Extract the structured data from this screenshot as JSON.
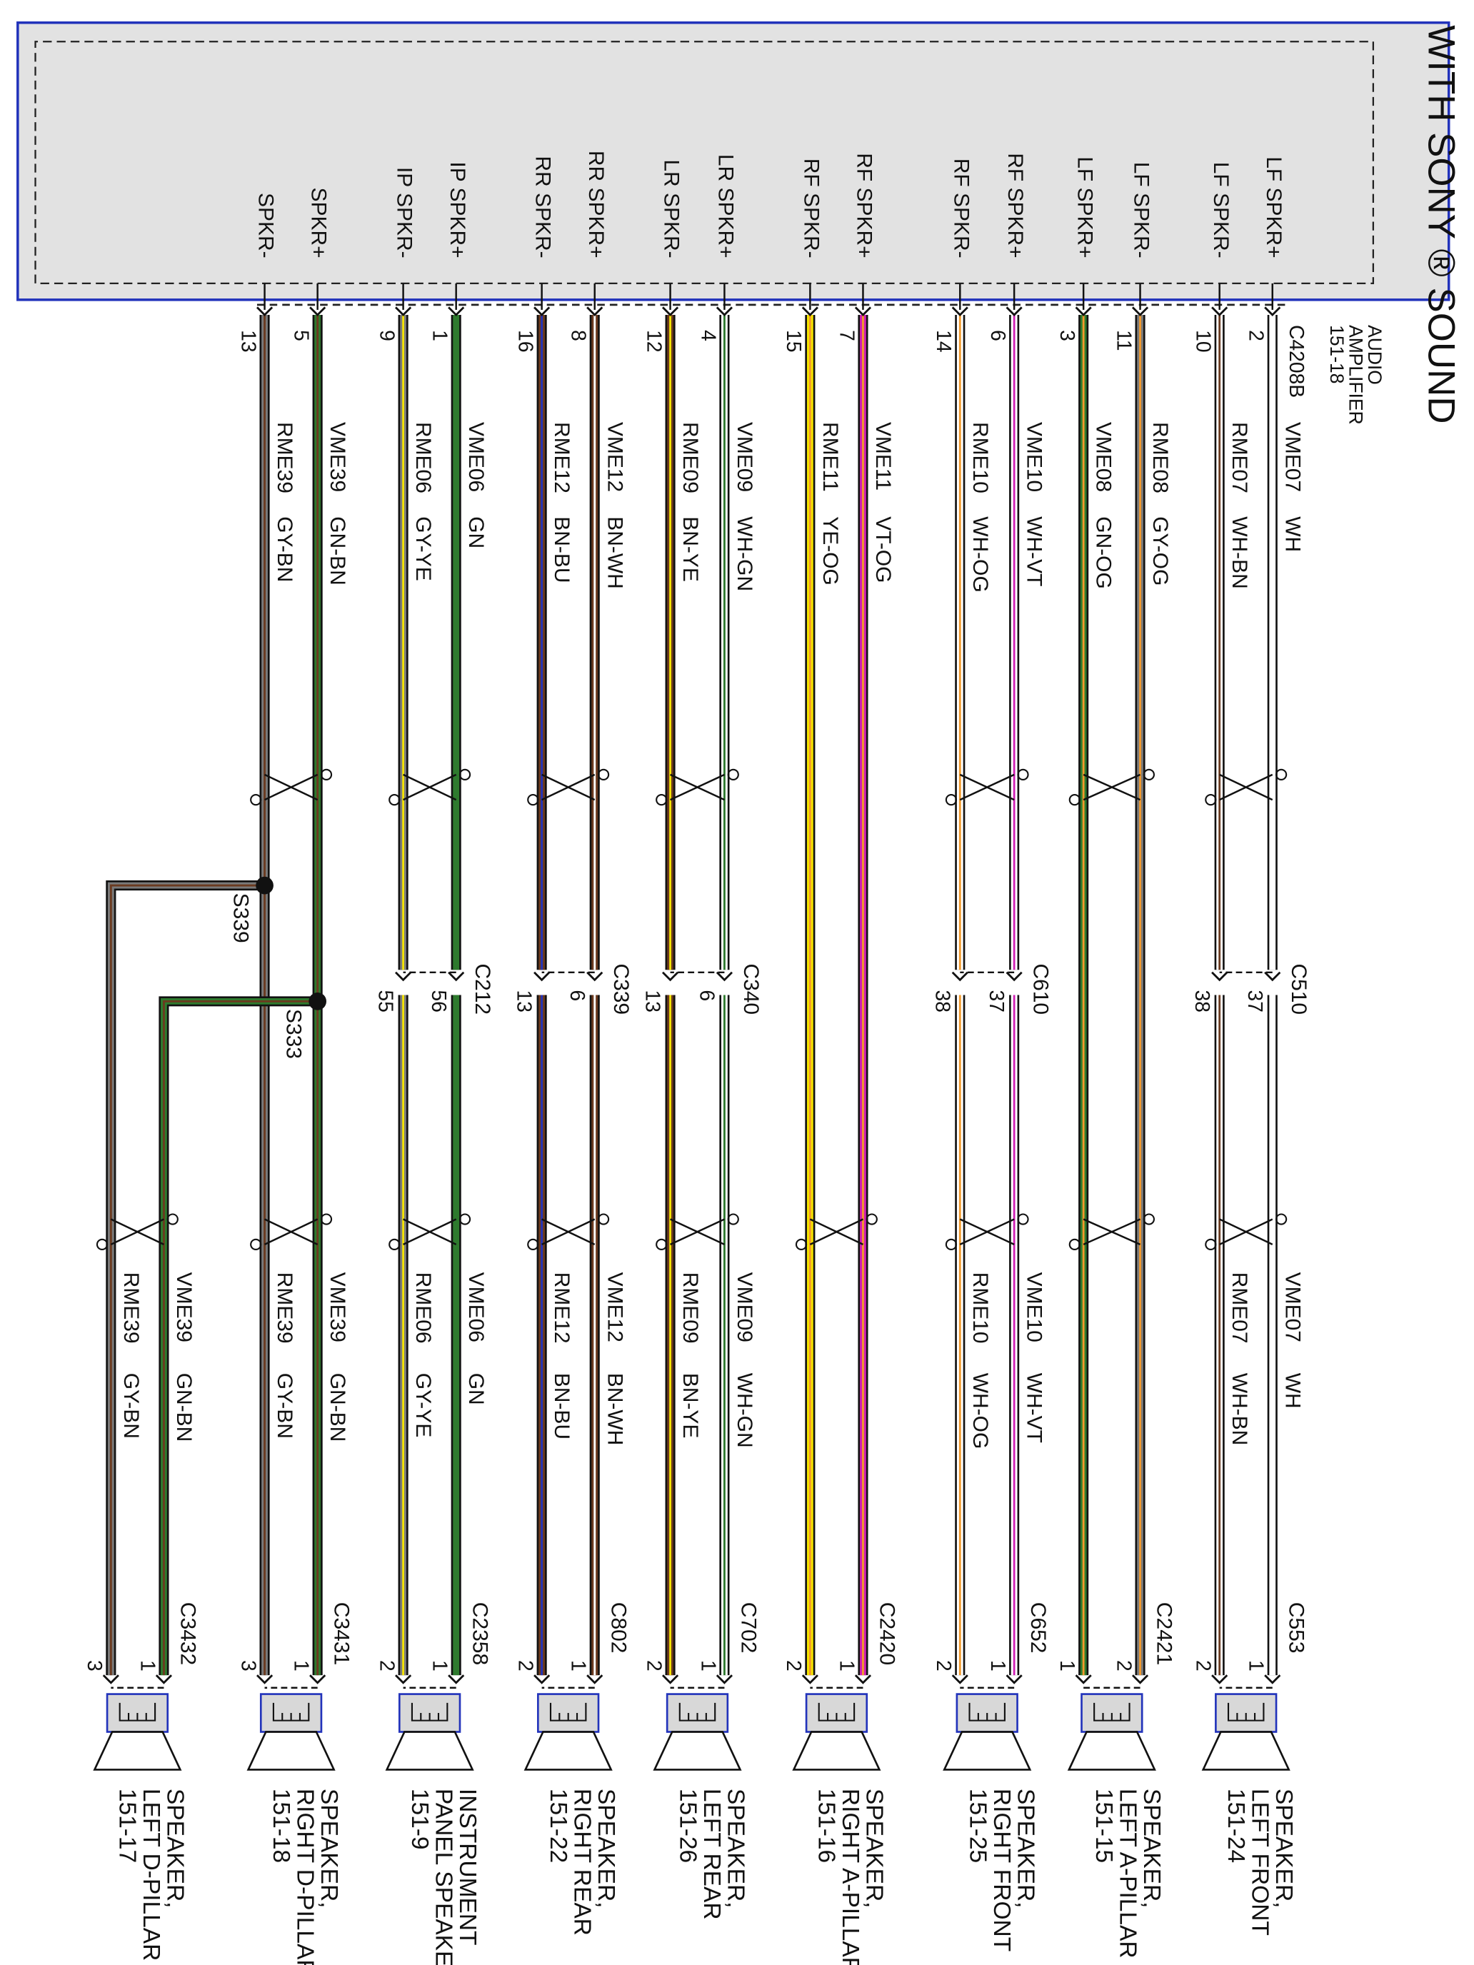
{
  "title": "WITH SONY ® SOUND",
  "amplifier": {
    "name": [
      "AUDIO",
      "AMPLIFIER"
    ],
    "ref": "151-18",
    "connector": "C4208B"
  },
  "circuits": [
    {
      "speaker": [
        "SPEAKER,",
        "LEFT FRONT"
      ],
      "speaker_ref": "151-24",
      "speaker_connector": "C553",
      "inline_connector": "C510",
      "wire_labels": [
        "near_amp",
        "near_speaker"
      ],
      "wires": [
        {
          "terminal": "LF SPKR+",
          "amp_pin": 2,
          "circuit": "VME07",
          "color": "WH",
          "inline_pin": 37,
          "speaker_pin": 1
        },
        {
          "terminal": "LF SPKR-",
          "amp_pin": 10,
          "circuit": "RME07",
          "color": "WH-BN",
          "inline_pin": 38,
          "speaker_pin": 2
        }
      ]
    },
    {
      "speaker": [
        "SPEAKER,",
        "LEFT A-PILLAR"
      ],
      "speaker_ref": "151-15",
      "speaker_connector": "C2421",
      "wire_labels": [
        "near_amp"
      ],
      "wires": [
        {
          "terminal": "LF SPKR-",
          "amp_pin": 11,
          "circuit": "RME08",
          "color": "GY-OG",
          "speaker_pin": 2
        },
        {
          "terminal": "LF SPKR+",
          "amp_pin": 3,
          "circuit": "VME08",
          "color": "GN-OG",
          "speaker_pin": 1
        }
      ]
    },
    {
      "speaker": [
        "SPEAKER,",
        "RIGHT FRONT"
      ],
      "speaker_ref": "151-25",
      "speaker_connector": "C652",
      "inline_connector": "C610",
      "wire_labels": [
        "near_amp",
        "near_speaker"
      ],
      "wires": [
        {
          "terminal": "RF SPKR+",
          "amp_pin": 6,
          "circuit": "VME10",
          "color": "WH-VT",
          "inline_pin": 37,
          "speaker_pin": 1
        },
        {
          "terminal": "RF SPKR-",
          "amp_pin": 14,
          "circuit": "RME10",
          "color": "WH-OG",
          "inline_pin": 38,
          "speaker_pin": 2
        }
      ]
    },
    {
      "speaker": [
        "SPEAKER,",
        "RIGHT A-PILLAR"
      ],
      "speaker_ref": "151-16",
      "speaker_connector": "C2420",
      "wire_labels": [
        "near_amp"
      ],
      "wires": [
        {
          "terminal": "RF SPKR+",
          "amp_pin": 7,
          "circuit": "VME11",
          "color": "VT-OG",
          "speaker_pin": 1
        },
        {
          "terminal": "RF SPKR-",
          "amp_pin": 15,
          "circuit": "RME11",
          "color": "YE-OG",
          "speaker_pin": 2
        }
      ]
    },
    {
      "speaker": [
        "SPEAKER,",
        "LEFT REAR"
      ],
      "speaker_ref": "151-26",
      "speaker_connector": "C702",
      "inline_connector": "C340",
      "wire_labels": [
        "near_amp",
        "near_speaker"
      ],
      "wires": [
        {
          "terminal": "LR SPKR+",
          "amp_pin": 4,
          "circuit": "VME09",
          "color": "WH-GN",
          "inline_pin": 6,
          "speaker_pin": 1
        },
        {
          "terminal": "LR SPKR-",
          "amp_pin": 12,
          "circuit": "RME09",
          "color": "BN-YE",
          "inline_pin": 13,
          "speaker_pin": 2
        }
      ]
    },
    {
      "speaker": [
        "SPEAKER,",
        "RIGHT REAR"
      ],
      "speaker_ref": "151-22",
      "speaker_connector": "C802",
      "inline_connector": "C339",
      "wire_labels": [
        "near_amp",
        "near_speaker"
      ],
      "wires": [
        {
          "terminal": "RR SPKR+",
          "amp_pin": 8,
          "circuit": "VME12",
          "color": "BN-WH",
          "inline_pin": 6,
          "speaker_pin": 1
        },
        {
          "terminal": "RR SPKR-",
          "amp_pin": 16,
          "circuit": "RME12",
          "color": "BN-BU",
          "inline_pin": 13,
          "speaker_pin": 2
        }
      ]
    },
    {
      "speaker": [
        "INSTRUMENT",
        "PANEL SPEAKER"
      ],
      "speaker_ref": "151-9",
      "speaker_connector": "C2358",
      "inline_connector": "C212",
      "wire_labels": [
        "near_amp",
        "near_speaker"
      ],
      "wires": [
        {
          "terminal": "IP SPKR+",
          "amp_pin": 1,
          "circuit": "VME06",
          "color": "GN",
          "inline_pin": 56,
          "speaker_pin": 1
        },
        {
          "terminal": "IP SPKR-",
          "amp_pin": 9,
          "circuit": "RME06",
          "color": "GY-YE",
          "inline_pin": 55,
          "speaker_pin": 2
        }
      ]
    },
    {
      "speaker": [
        "SPEAKER,",
        "RIGHT D-PILLAR"
      ],
      "speaker_ref": "151-18",
      "speaker_connector": "C3431",
      "wire_labels": [
        "near_amp",
        "near_speaker"
      ],
      "wires": [
        {
          "terminal": "SPKR+",
          "amp_pin": 5,
          "circuit": "VME39",
          "color": "GN-BN",
          "speaker_pin": 1
        },
        {
          "terminal": "SPKR-",
          "amp_pin": 13,
          "circuit": "RME39",
          "color": "GY-BN",
          "speaker_pin": 3
        }
      ]
    },
    {
      "speaker": [
        "SPEAKER,",
        "LEFT D-PILLAR"
      ],
      "speaker_ref": "151-17",
      "speaker_connector": "C3432",
      "wire_labels": [
        "near_speaker"
      ],
      "wires": [
        {
          "splice": "S333",
          "circuit": "VME39",
          "color": "GN-BN",
          "speaker_pin": 1
        },
        {
          "splice": "S339",
          "circuit": "RME39",
          "color": "GY-BN",
          "speaker_pin": 3
        }
      ]
    }
  ]
}
